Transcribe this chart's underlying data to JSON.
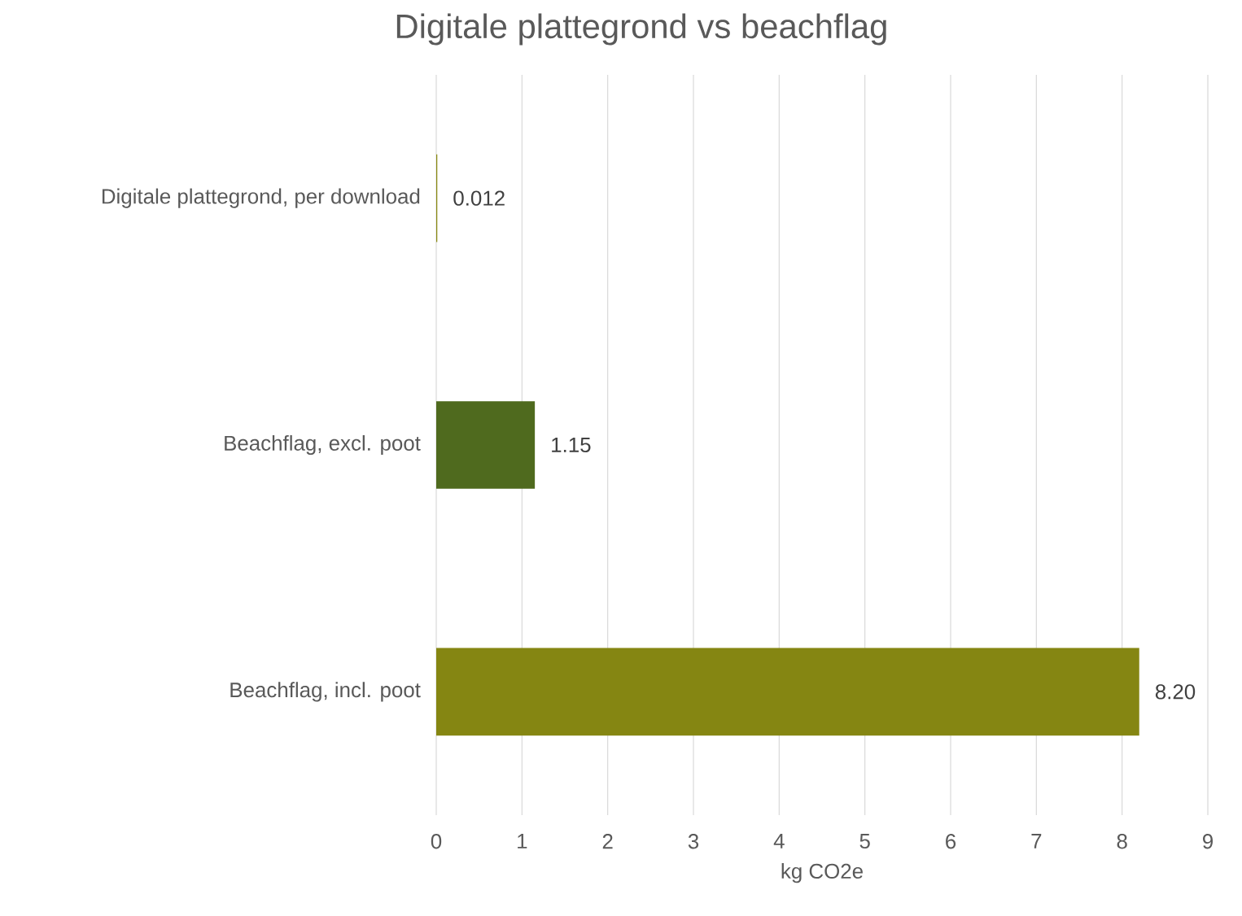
{
  "chart_data": {
    "type": "bar",
    "orientation": "horizontal",
    "title": "Digitale plattegrond vs beachflag",
    "categories": [
      "Digitale plattegrond, per download",
      "Beachflag, excl. poot",
      "Beachflag, incl. poot"
    ],
    "values": [
      0.012,
      1.15,
      8.2
    ],
    "colors": [
      "#8a8a14",
      "#4f6a1e",
      "#858612"
    ],
    "value_labels": [
      "0.012",
      "1.15",
      "8.20"
    ],
    "xlabel": "kg CO2e",
    "xlim": [
      0,
      9
    ],
    "xticks": [
      0,
      1,
      2,
      3,
      4,
      5,
      6,
      7,
      8,
      9
    ],
    "grid": "x"
  }
}
